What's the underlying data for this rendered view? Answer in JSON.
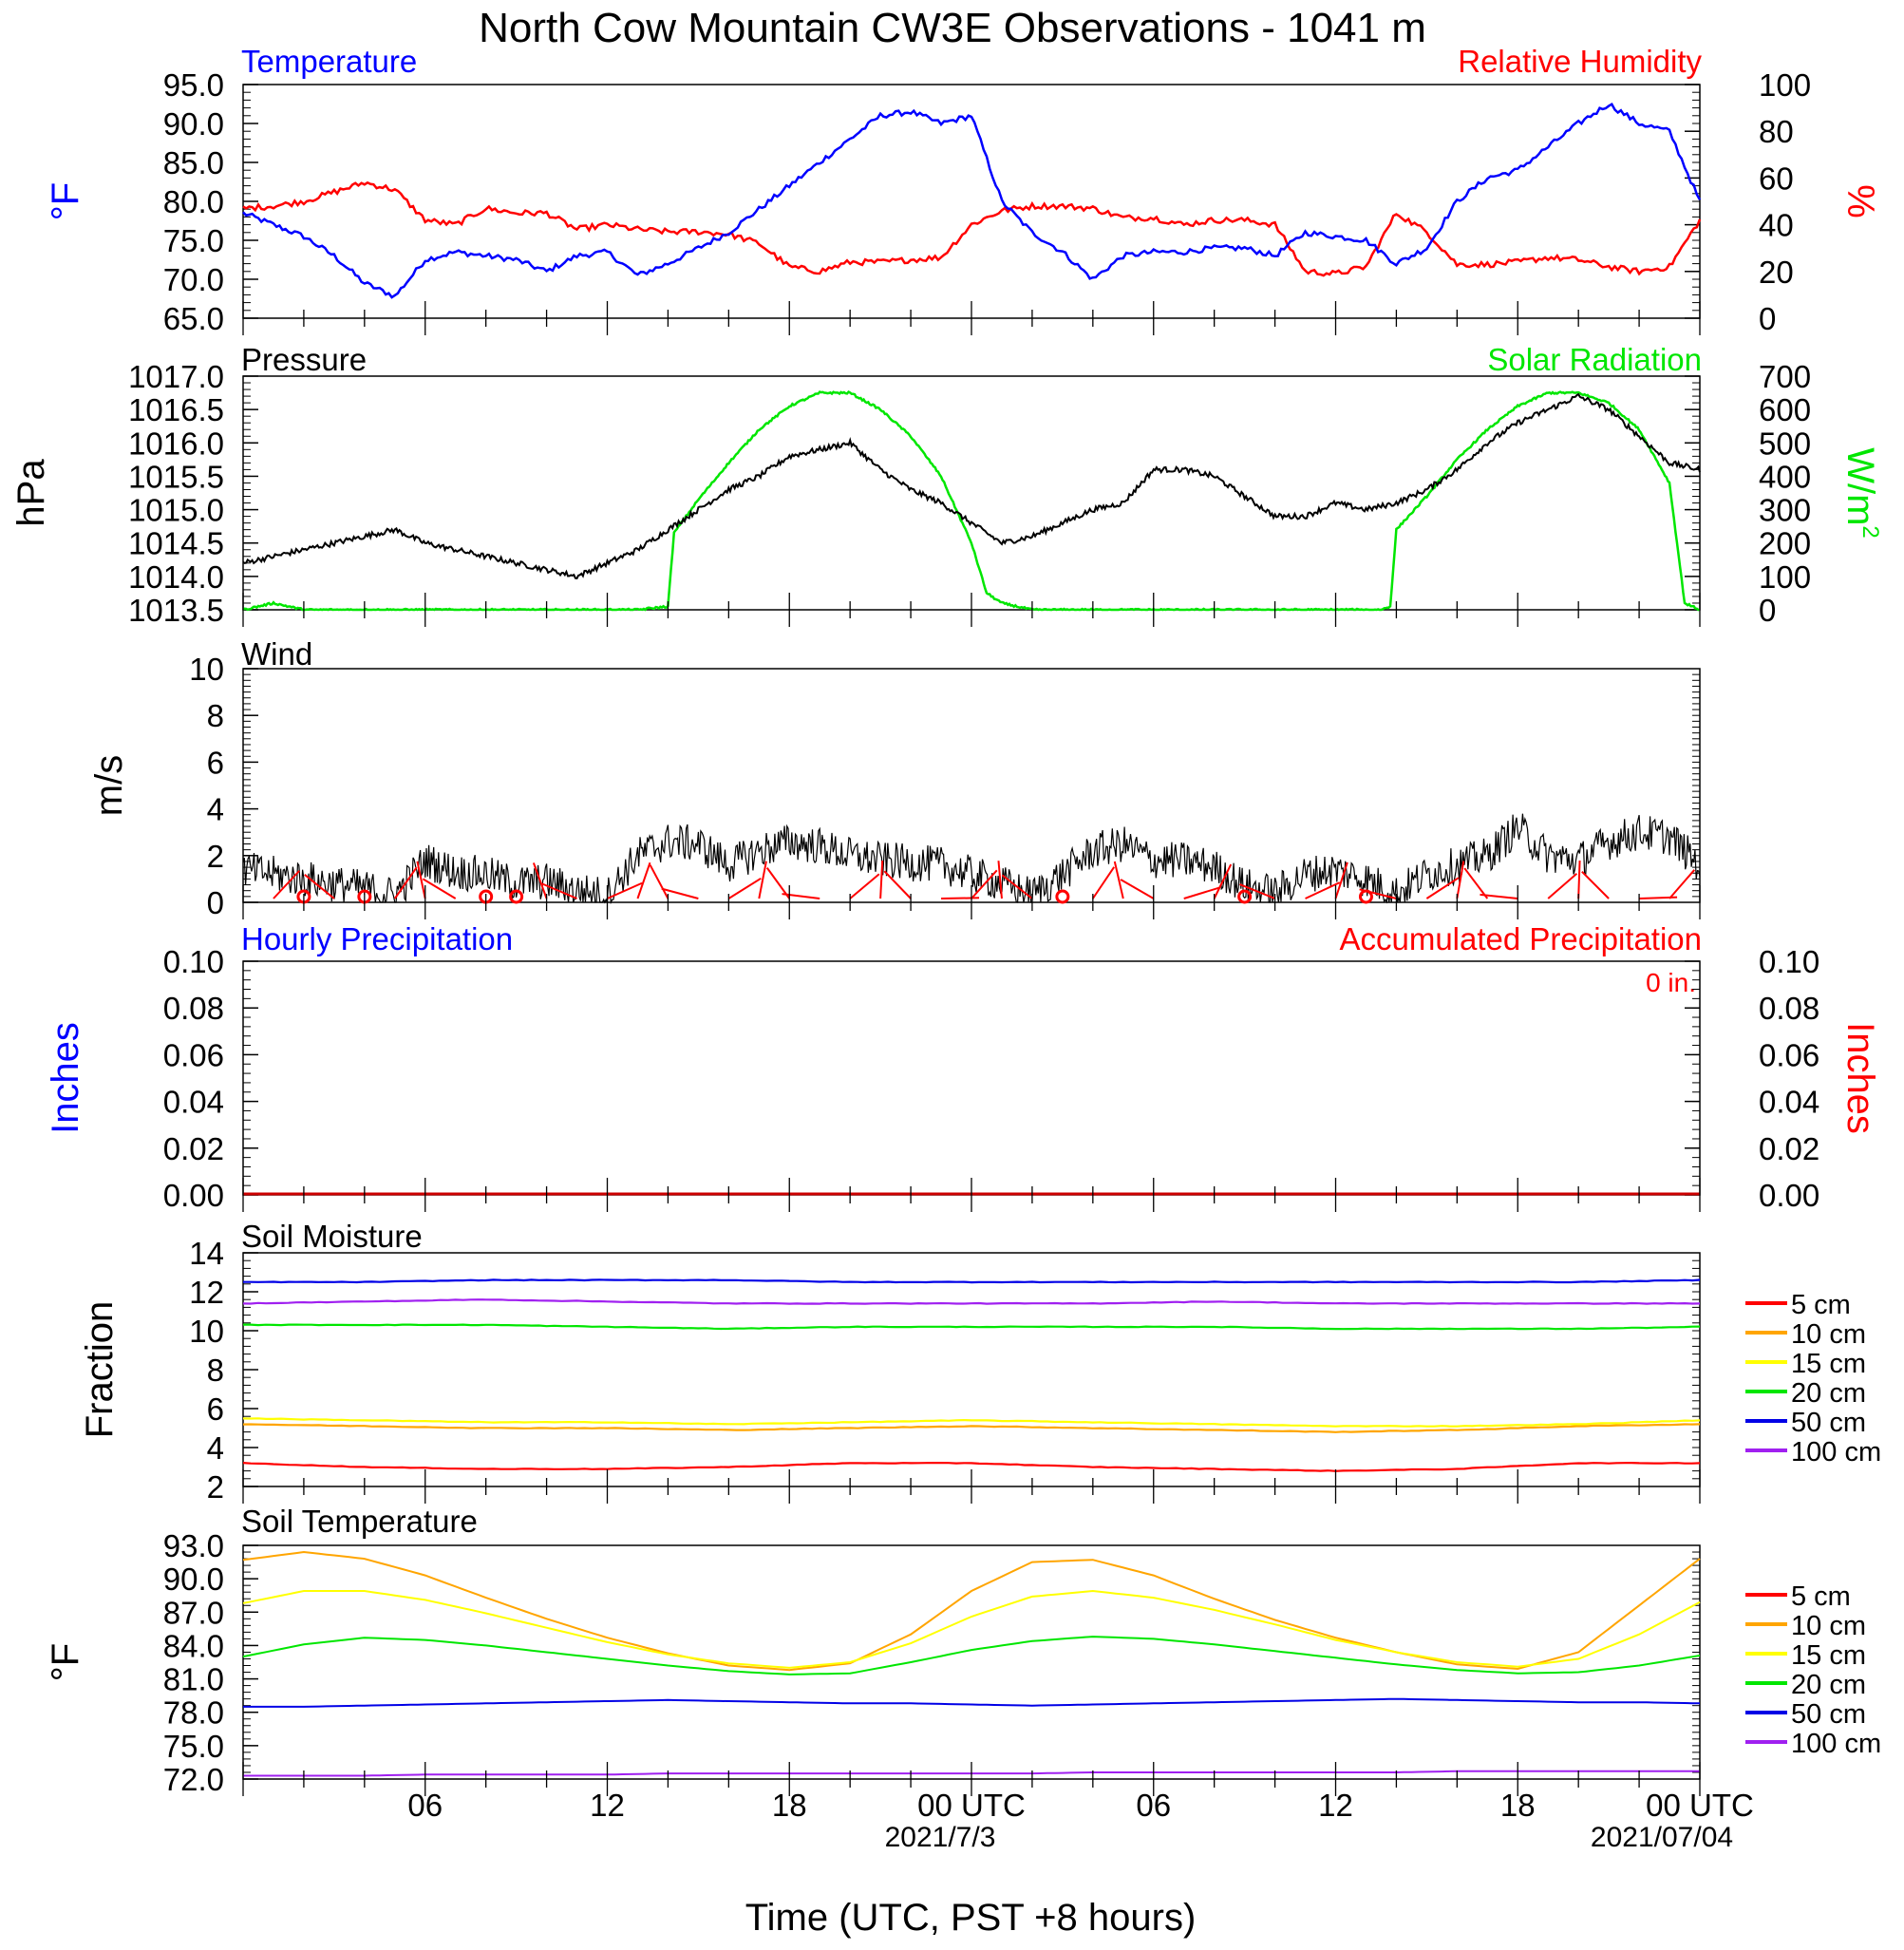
{
  "title": "North Cow Mountain CW3E Observations - 1041 m",
  "x_axis": {
    "label": "Time (UTC, PST +8 hours)",
    "ticks": [
      "06",
      "12",
      "18",
      "00 UTC",
      "06",
      "12",
      "18",
      "00 UTC"
    ],
    "dates": [
      "2021/7/3",
      "2021/07/04"
    ]
  },
  "colors": {
    "temperature": "#0000ff",
    "humidity": "#ff0000",
    "pressure": "#000000",
    "solar": "#00e600",
    "wind": "#000000",
    "barb": "#ff0000",
    "d5": "#ff0000",
    "d10": "#ffa500",
    "d15": "#ffff00",
    "d20": "#00e600",
    "d50": "#0000e6",
    "d100": "#a020f0"
  },
  "panels": {
    "temp_rh": {
      "left_title": "Temperature",
      "right_title": "Relative Humidity",
      "left_unit": "°F",
      "right_unit": "%",
      "left_ticks": [
        "95.0",
        "90.0",
        "85.0",
        "80.0",
        "75.0",
        "70.0",
        "65.0"
      ],
      "right_ticks": [
        "100",
        "80",
        "60",
        "40",
        "20",
        "0"
      ]
    },
    "pressure_solar": {
      "left_title": "Pressure",
      "right_title": "Solar Radiation",
      "left_unit": "hPa",
      "right_unit": "W/m",
      "right_unit_sup": "2",
      "left_ticks": [
        "1017.0",
        "1016.5",
        "1016.0",
        "1015.5",
        "1015.0",
        "1014.5",
        "1014.0",
        "1013.5"
      ],
      "right_ticks": [
        "700",
        "600",
        "500",
        "400",
        "300",
        "200",
        "100",
        "0"
      ]
    },
    "wind": {
      "title": "Wind",
      "unit": "m/s",
      "ticks": [
        "10",
        "8",
        "6",
        "4",
        "2",
        "0"
      ]
    },
    "precip": {
      "left_title": "Hourly Precipitation",
      "right_title": "Accumulated Precipitation",
      "total": "0 in.",
      "left_unit": "Inches",
      "right_unit": "Inches",
      "left_ticks": [
        "0.10",
        "0.08",
        "0.06",
        "0.04",
        "0.02",
        "0.00"
      ],
      "right_ticks": [
        "0.10",
        "0.08",
        "0.06",
        "0.04",
        "0.02",
        "0.00"
      ]
    },
    "soil_moisture": {
      "title": "Soil Moisture",
      "unit": "Fraction",
      "ticks": [
        "14",
        "12",
        "10",
        "8",
        "6",
        "4",
        "2"
      ],
      "legend": [
        "5 cm",
        "10 cm",
        "15 cm",
        "20 cm",
        "50 cm",
        "100 cm"
      ]
    },
    "soil_temp": {
      "title": "Soil Temperature",
      "unit": "°F",
      "ticks": [
        "93.0",
        "90.0",
        "87.0",
        "84.0",
        "81.0",
        "78.0",
        "75.0",
        "72.0"
      ],
      "legend": [
        "5 cm",
        "10 cm",
        "15 cm",
        "20 cm",
        "50 cm",
        "100 cm"
      ]
    }
  },
  "chart_data": [
    {
      "type": "line",
      "title": "Temperature",
      "ylabel": "°F",
      "ylim": [
        65,
        95
      ],
      "x_hours": [
        0,
        1,
        2,
        3,
        4,
        5,
        6,
        7,
        8,
        9,
        10,
        11,
        12,
        13,
        14,
        15,
        16,
        17,
        18,
        19,
        20,
        21,
        22,
        23,
        24,
        25,
        26,
        27,
        28,
        29,
        30,
        31,
        32,
        33,
        34,
        35,
        36,
        37,
        38,
        39,
        40,
        41,
        42,
        43,
        44,
        45,
        46,
        47,
        48
      ],
      "series": [
        {
          "name": "Temperature",
          "values": [
            78.5,
            77,
            75.5,
            73,
            69.5,
            67.8,
            72.5,
            73.5,
            73,
            72.5,
            71,
            73,
            73.5,
            70.5,
            72,
            74,
            76,
            79,
            82,
            85,
            88,
            91,
            91.5,
            90,
            91,
            80,
            76,
            73.5,
            70,
            73,
            73.5,
            73.5,
            74,
            74,
            73,
            76,
            75.5,
            75,
            72,
            74,
            80,
            83,
            84,
            87,
            90,
            92.5,
            90,
            89,
            80
          ]
        }
      ]
    },
    {
      "type": "line",
      "title": "Relative Humidity",
      "ylabel": "%",
      "ylim": [
        0,
        100
      ],
      "x_hours": [
        0,
        1,
        2,
        3,
        4,
        5,
        6,
        7,
        8,
        9,
        10,
        11,
        12,
        13,
        14,
        15,
        16,
        17,
        18,
        19,
        20,
        21,
        22,
        23,
        24,
        25,
        26,
        27,
        28,
        29,
        30,
        31,
        32,
        33,
        34,
        35,
        36,
        37,
        38,
        39,
        40,
        41,
        42,
        43,
        44,
        45,
        46,
        47,
        48
      ],
      "series": [
        {
          "name": "Relative Humidity",
          "values": [
            47,
            48,
            50,
            54,
            58,
            55,
            42,
            40,
            47,
            45,
            45,
            38,
            40,
            38,
            37,
            37,
            36,
            32,
            22,
            20,
            24,
            24,
            25,
            26,
            40,
            46,
            48,
            48,
            47,
            43,
            43,
            40,
            42,
            42,
            40,
            20,
            19,
            22,
            45,
            37,
            23,
            23,
            24,
            26,
            25,
            22,
            20,
            22,
            42
          ]
        }
      ]
    },
    {
      "type": "line",
      "title": "Pressure",
      "ylabel": "hPa",
      "ylim": [
        1013.5,
        1017.0
      ],
      "x_hours": [
        0,
        1,
        2,
        3,
        4,
        5,
        6,
        7,
        8,
        9,
        10,
        11,
        12,
        13,
        14,
        15,
        16,
        17,
        18,
        19,
        20,
        21,
        22,
        23,
        24,
        25,
        26,
        27,
        28,
        29,
        30,
        31,
        32,
        33,
        34,
        35,
        36,
        37,
        38,
        39,
        40,
        41,
        42,
        43,
        44,
        45,
        46,
        47,
        48
      ],
      "series": [
        {
          "name": "Pressure",
          "values": [
            1014.2,
            1014.3,
            1014.4,
            1014.5,
            1014.6,
            1014.7,
            1014.5,
            1014.4,
            1014.3,
            1014.2,
            1014.1,
            1014.0,
            1014.2,
            1014.4,
            1014.7,
            1015.0,
            1015.3,
            1015.5,
            1015.8,
            1015.9,
            1016.0,
            1015.6,
            1015.3,
            1015.1,
            1014.8,
            1014.5,
            1014.6,
            1014.8,
            1015.0,
            1015.1,
            1015.6,
            1015.6,
            1015.5,
            1015.2,
            1014.9,
            1014.9,
            1015.1,
            1015.0,
            1015.1,
            1015.3,
            1015.6,
            1016.0,
            1016.3,
            1016.5,
            1016.7,
            1016.5,
            1016.1,
            1015.7,
            1015.6
          ]
        }
      ]
    },
    {
      "type": "line",
      "title": "Solar Radiation",
      "ylabel": "W/m2",
      "ylim": [
        0,
        700
      ],
      "x_hours": [
        0,
        1,
        2,
        13,
        14,
        14.2,
        15,
        16,
        17,
        18,
        19,
        20,
        21,
        22,
        23,
        24,
        24.5,
        25,
        26,
        37.5,
        37.8,
        38,
        39,
        40,
        41,
        42,
        43,
        44,
        45,
        46,
        47,
        47.5,
        48
      ],
      "series": [
        {
          "name": "Solar Radiation",
          "values": [
            0,
            20,
            0,
            0,
            10,
            230,
            330,
            440,
            540,
            610,
            650,
            650,
            600,
            520,
            400,
            200,
            50,
            20,
            0,
            0,
            10,
            240,
            340,
            450,
            540,
            610,
            650,
            650,
            620,
            540,
            380,
            20,
            0
          ]
        }
      ]
    },
    {
      "type": "line",
      "title": "Wind",
      "ylabel": "m/s",
      "ylim": [
        0,
        10
      ],
      "x_hours": [
        0,
        1,
        2,
        3,
        4,
        5,
        6,
        7,
        8,
        9,
        10,
        11,
        12,
        13,
        14,
        15,
        16,
        17,
        18,
        19,
        20,
        21,
        22,
        23,
        24,
        25,
        26,
        27,
        28,
        29,
        30,
        31,
        32,
        33,
        34,
        35,
        36,
        37,
        38,
        39,
        40,
        41,
        42,
        43,
        44,
        45,
        46,
        47,
        48
      ],
      "series": [
        {
          "name": "Wind",
          "values": [
            1.4,
            1.2,
            1.0,
            0.8,
            0.6,
            0.3,
            1.8,
            1.3,
            1.2,
            0.8,
            0.9,
            0.5,
            0.3,
            2.0,
            2.6,
            2.5,
            1.6,
            2.2,
            2.6,
            2.4,
            2.0,
            1.8,
            1.7,
            1.6,
            1.2,
            0.8,
            0.3,
            1.2,
            2.2,
            2.5,
            1.8,
            1.8,
            1.5,
            0.7,
            0.4,
            1.2,
            1.4,
            1.0,
            0.4,
            1.2,
            1.6,
            2.0,
            3.2,
            2.0,
            1.8,
            2.6,
            3.0,
            2.8,
            1.6
          ]
        }
      ]
    },
    {
      "type": "bar",
      "title": "Hourly Precipitation",
      "ylabel": "Inches",
      "ylim": [
        0,
        0.1
      ],
      "series": [
        {
          "name": "Hourly Precipitation",
          "values": [
            0
          ]
        },
        {
          "name": "Accumulated Precipitation",
          "values": [
            0
          ]
        }
      ]
    },
    {
      "type": "line",
      "title": "Soil Moisture",
      "ylabel": "Fraction",
      "ylim": [
        2,
        14
      ],
      "series": [
        {
          "name": "5 cm",
          "values": [
            3.2,
            3.0,
            2.9,
            2.9,
            3.0,
            3.2,
            3.2,
            3.0,
            2.9,
            2.8,
            2.9,
            3.2,
            3.2
          ]
        },
        {
          "name": "10 cm",
          "values": [
            5.2,
            5.1,
            5.0,
            5.0,
            4.9,
            5.0,
            5.1,
            5.0,
            4.9,
            4.8,
            4.9,
            5.1,
            5.2
          ]
        },
        {
          "name": "15 cm",
          "values": [
            5.5,
            5.4,
            5.3,
            5.3,
            5.2,
            5.3,
            5.4,
            5.3,
            5.2,
            5.1,
            5.1,
            5.2,
            5.4
          ]
        },
        {
          "name": "20 cm",
          "values": [
            10.3,
            10.3,
            10.3,
            10.2,
            10.1,
            10.2,
            10.2,
            10.2,
            10.2,
            10.1,
            10.1,
            10.1,
            10.2
          ]
        },
        {
          "name": "50 cm",
          "values": [
            12.5,
            12.5,
            12.6,
            12.6,
            12.6,
            12.5,
            12.5,
            12.5,
            12.5,
            12.5,
            12.5,
            12.5,
            12.6
          ]
        },
        {
          "name": "100 cm",
          "values": [
            11.4,
            11.5,
            11.6,
            11.5,
            11.4,
            11.4,
            11.4,
            11.4,
            11.5,
            11.4,
            11.4,
            11.4,
            11.4
          ]
        }
      ]
    },
    {
      "type": "line",
      "title": "Soil Temperature",
      "ylabel": "°F",
      "ylim": [
        72,
        93
      ],
      "x_hours": [
        0,
        2,
        4,
        6,
        8,
        10,
        12,
        14,
        16,
        18,
        20,
        22,
        24,
        26,
        28,
        30,
        32,
        34,
        36,
        38,
        40,
        42,
        44,
        46,
        48
      ],
      "series": [
        {
          "name": "10 cm",
          "values": [
            91.7,
            92.4,
            91.8,
            90.3,
            88.3,
            86.4,
            84.7,
            83.3,
            82.2,
            81.8,
            82.4,
            85.0,
            88.9,
            91.5,
            91.7,
            90.3,
            88.2,
            86.3,
            84.7,
            83.4,
            82.3,
            81.9,
            83.4,
            87.6,
            91.8
          ]
        },
        {
          "name": "15 cm",
          "values": [
            87.8,
            88.9,
            88.9,
            88.1,
            86.9,
            85.6,
            84.3,
            83.2,
            82.4,
            82.0,
            82.5,
            84.2,
            86.6,
            88.4,
            88.9,
            88.3,
            87.2,
            85.9,
            84.5,
            83.4,
            82.5,
            82.1,
            82.8,
            85.0,
            87.9
          ]
        },
        {
          "name": "20 cm",
          "values": [
            83.0,
            84.1,
            84.7,
            84.5,
            84.0,
            83.4,
            82.8,
            82.2,
            81.7,
            81.4,
            81.5,
            82.5,
            83.6,
            84.4,
            84.8,
            84.6,
            84.1,
            83.5,
            82.9,
            82.3,
            81.8,
            81.5,
            81.6,
            82.2,
            83.1
          ]
        },
        {
          "name": "50 cm",
          "values": [
            78.5,
            78.5,
            78.6,
            78.7,
            78.8,
            78.9,
            79.0,
            79.1,
            79.0,
            78.9,
            78.8,
            78.8,
            78.7,
            78.6,
            78.7,
            78.8,
            78.9,
            79.0,
            79.1,
            79.2,
            79.1,
            79.0,
            78.9,
            78.9,
            78.8
          ]
        },
        {
          "name": "100 cm",
          "values": [
            72.3,
            72.3,
            72.3,
            72.4,
            72.4,
            72.4,
            72.4,
            72.5,
            72.5,
            72.5,
            72.5,
            72.5,
            72.5,
            72.5,
            72.6,
            72.6,
            72.6,
            72.6,
            72.6,
            72.6,
            72.7,
            72.7,
            72.7,
            72.7,
            72.7
          ]
        }
      ]
    }
  ]
}
